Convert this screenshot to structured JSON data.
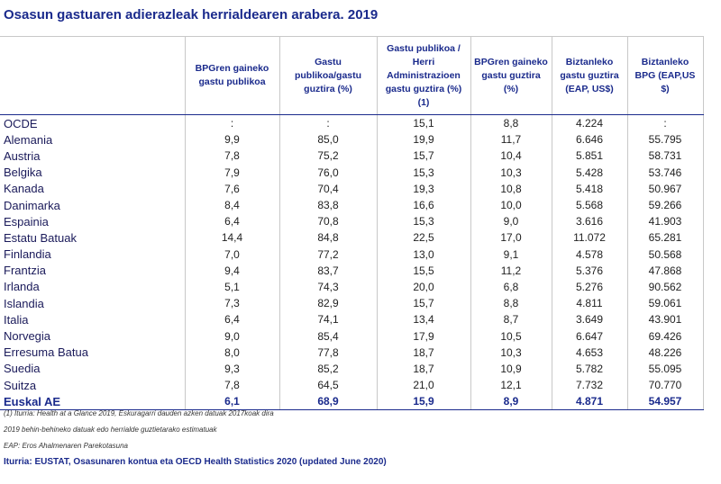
{
  "title": "Osasun gastuaren adierazleak herrialdearen arabera. 2019",
  "table": {
    "headers": [
      "BPGren gaineko gastu publikoa",
      "Gastu publikoa/gastu guztira (%)",
      "Gastu publikoa / Herri Administrazioen gastu guztira (%) (1)",
      "BPGren gaineko gastu guztira (%)",
      "Biztanleko gastu guztira (EAP, US$)",
      "Biztanleko BPG (EAP,US $)"
    ],
    "rows": [
      [
        "OCDE",
        ":",
        ":",
        "15,1",
        "8,8",
        "4.224",
        ":"
      ],
      [
        "Alemania",
        "9,9",
        "85,0",
        "19,9",
        "11,7",
        "6.646",
        "55.795"
      ],
      [
        "Austria",
        "7,8",
        "75,2",
        "15,7",
        "10,4",
        "5.851",
        "58.731"
      ],
      [
        "Belgika",
        "7,9",
        "76,0",
        "15,3",
        "10,3",
        "5.428",
        "53.746"
      ],
      [
        "Kanada",
        "7,6",
        "70,4",
        "19,3",
        "10,8",
        "5.418",
        "50.967"
      ],
      [
        "Danimarka",
        "8,4",
        "83,8",
        "16,6",
        "10,0",
        "5.568",
        "59.266"
      ],
      [
        "Espainia",
        "6,4",
        "70,8",
        "15,3",
        "9,0",
        "3.616",
        "41.903"
      ],
      [
        "Estatu Batuak",
        "14,4",
        "84,8",
        "22,5",
        "17,0",
        "11.072",
        "65.281"
      ],
      [
        "Finlandia",
        "7,0",
        "77,2",
        "13,0",
        "9,1",
        "4.578",
        "50.568"
      ],
      [
        "Frantzia",
        "9,4",
        "83,7",
        "15,5",
        "11,2",
        "5.376",
        "47.868"
      ],
      [
        "Irlanda",
        "5,1",
        "74,3",
        "20,0",
        "6,8",
        "5.276",
        "90.562"
      ],
      [
        "Islandia",
        "7,3",
        "82,9",
        "15,7",
        "8,8",
        "4.811",
        "59.061"
      ],
      [
        "Italia",
        "6,4",
        "74,1",
        "13,4",
        "8,7",
        "3.649",
        "43.901"
      ],
      [
        "Norvegia",
        "9,0",
        "85,4",
        "17,9",
        "10,5",
        "6.647",
        "69.426"
      ],
      [
        "Erresuma Batua",
        "8,0",
        "77,8",
        "18,7",
        "10,3",
        "4.653",
        "48.226"
      ],
      [
        "Suedia",
        "9,3",
        "85,2",
        "18,7",
        "10,9",
        "5.782",
        "55.095"
      ],
      [
        "Suitza",
        "7,8",
        "64,5",
        "21,0",
        "12,1",
        "7.732",
        "70.770"
      ],
      [
        "Euskal AE",
        "6,1",
        "68,9",
        "15,9",
        "8,9",
        "4.871",
        "54.957"
      ]
    ]
  },
  "footnotes": [
    "(1) Iturria: Health at a Glance 2019, Eskuragarri dauden azken datuak 2017koak dira",
    "2019 behin-behineko datuak edo herrialde guztietarako estimatuak",
    "EAP: Eros Ahalmenaren Parekotasuna"
  ],
  "source": "Iturria: EUSTAT, Osasunaren kontua eta OECD Health Statistics 2020 (updated June 2020)"
}
